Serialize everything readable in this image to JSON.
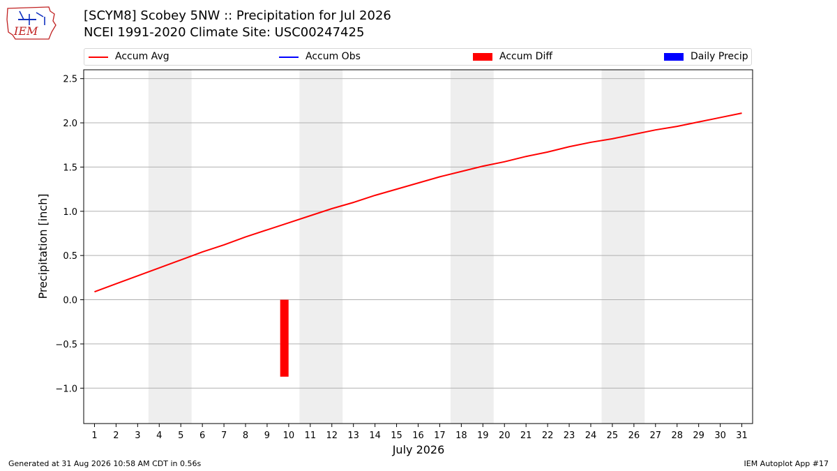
{
  "title": {
    "line1": "[SCYM8] Scobey 5NW :: Precipitation for Jul 2026",
    "line2": "NCEI 1991-2020 Climate Site: USC00247425"
  },
  "logo_text": "IEM",
  "footer": {
    "left": "Generated at 31 Aug 2026 10:58 AM CDT in 0.56s",
    "right": "IEM Autoplot App #17"
  },
  "legend": {
    "items": [
      {
        "label": "Accum Avg",
        "kind": "line",
        "color": "#ff0000"
      },
      {
        "label": "Accum Obs",
        "kind": "line",
        "color": "#0000ff"
      },
      {
        "label": "Accum Diff",
        "kind": "patch",
        "color": "#ff0000"
      },
      {
        "label": "Daily Precip",
        "kind": "patch",
        "color": "#0000ff"
      }
    ]
  },
  "chart_data": {
    "type": "line",
    "title": "[SCYM8] Scobey 5NW :: Precipitation for Jul 2026",
    "subtitle": "NCEI 1991-2020 Climate Site: USC00247425",
    "xlabel": "July 2026",
    "ylabel": "Precipitation [inch]",
    "x": [
      1,
      2,
      3,
      4,
      5,
      6,
      7,
      8,
      9,
      10,
      11,
      12,
      13,
      14,
      15,
      16,
      17,
      18,
      19,
      20,
      21,
      22,
      23,
      24,
      25,
      26,
      27,
      28,
      29,
      30,
      31
    ],
    "xlim": [
      0.5,
      31.5
    ],
    "ylim": [
      -1.4,
      2.6
    ],
    "yticks": [
      -1.0,
      -0.5,
      0.0,
      0.5,
      1.0,
      1.5,
      2.0,
      2.5
    ],
    "ytick_labels": [
      "−1.0",
      "−0.5",
      "0.0",
      "0.5",
      "1.0",
      "1.5",
      "2.0",
      "2.5"
    ],
    "grid": true,
    "legend_position": "top",
    "weekend_bands": [
      [
        3.5,
        5.5
      ],
      [
        10.5,
        12.5
      ],
      [
        17.5,
        19.5
      ],
      [
        24.5,
        26.5
      ]
    ],
    "series": [
      {
        "name": "Accum Avg",
        "type": "line",
        "color": "#ff0000",
        "values": [
          0.09,
          0.18,
          0.27,
          0.36,
          0.45,
          0.54,
          0.62,
          0.71,
          0.79,
          0.87,
          0.95,
          1.03,
          1.1,
          1.18,
          1.25,
          1.32,
          1.39,
          1.45,
          1.51,
          1.56,
          1.62,
          1.67,
          1.73,
          1.78,
          1.82,
          1.87,
          1.92,
          1.96,
          2.01,
          2.06,
          2.11
        ]
      },
      {
        "name": "Accum Diff",
        "type": "bar",
        "color": "#ff0000",
        "points": [
          {
            "x": 9.8,
            "y": -0.87
          }
        ]
      }
    ]
  }
}
